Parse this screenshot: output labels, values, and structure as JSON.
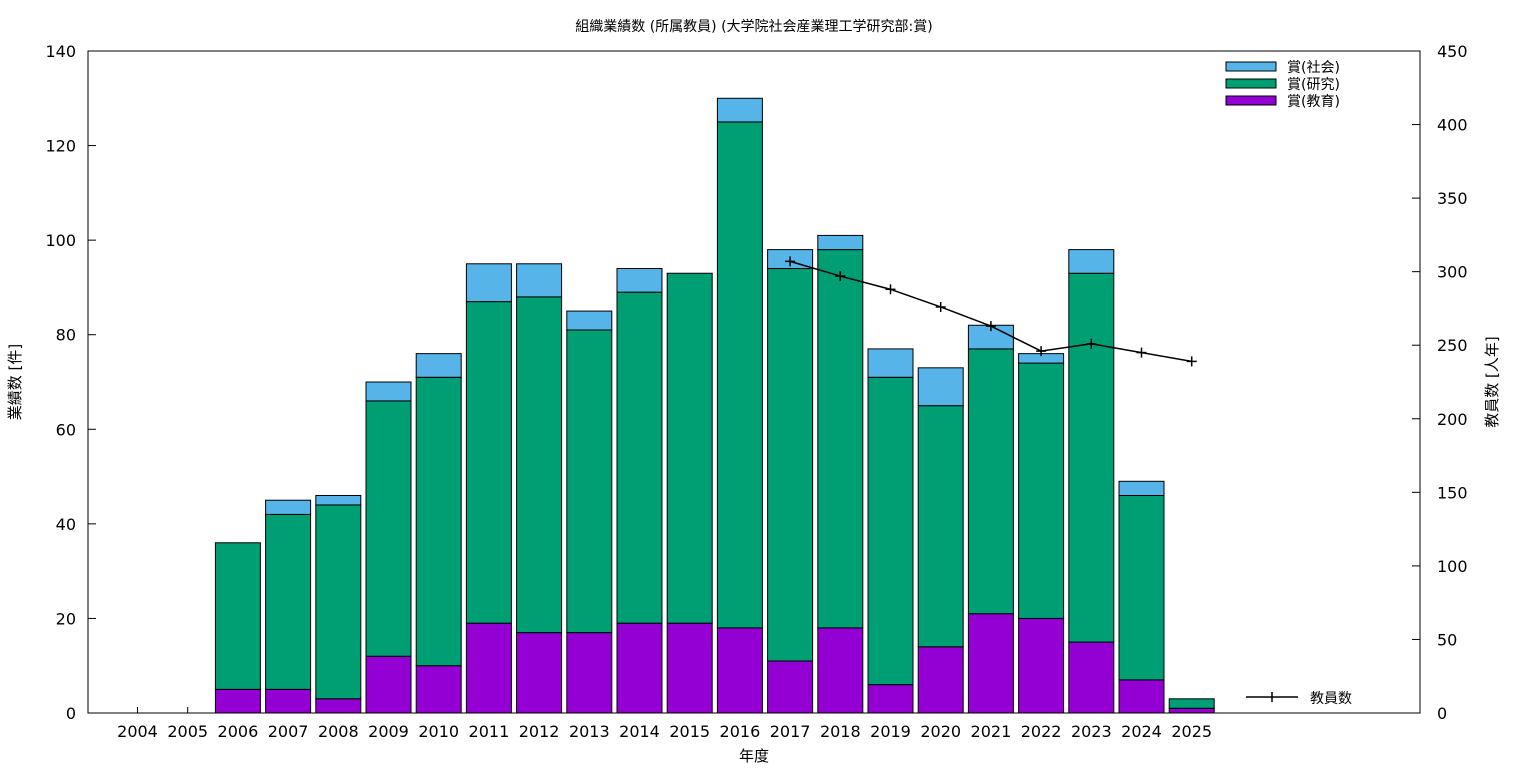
{
  "chart_data": {
    "type": "bar",
    "stacked": true,
    "title": "組織業績数 (所属教員) (大学院社会産業理工学研究部:賞)",
    "xlabel": "年度",
    "ylabel": "業績数 [件]",
    "y2label": "教員数 [人年]",
    "ylim": [
      0,
      140
    ],
    "y2lim": [
      0,
      450
    ],
    "yticks": [
      0,
      20,
      40,
      60,
      80,
      100,
      120,
      140
    ],
    "y2ticks": [
      0,
      50,
      100,
      150,
      200,
      250,
      300,
      350,
      400,
      450
    ],
    "grid": false,
    "legend_position": "top-right",
    "categories": [
      "2004",
      "2005",
      "2006",
      "2007",
      "2008",
      "2009",
      "2010",
      "2011",
      "2012",
      "2013",
      "2014",
      "2015",
      "2016",
      "2017",
      "2018",
      "2019",
      "2020",
      "2021",
      "2022",
      "2023",
      "2024",
      "2025"
    ],
    "series": [
      {
        "name": "賞(教育)",
        "color": "#9400d3",
        "values": [
          0,
          0,
          5,
          5,
          3,
          12,
          10,
          19,
          17,
          17,
          19,
          19,
          18,
          11,
          18,
          6,
          14,
          21,
          20,
          15,
          7,
          1
        ]
      },
      {
        "name": "賞(研究)",
        "color": "#009e73",
        "values": [
          0,
          0,
          31,
          37,
          41,
          54,
          61,
          68,
          71,
          64,
          70,
          74,
          107,
          83,
          80,
          65,
          51,
          56,
          54,
          78,
          39,
          2
        ]
      },
      {
        "name": "賞(社会)",
        "color": "#56b4e9",
        "values": [
          0,
          0,
          0,
          3,
          2,
          4,
          5,
          8,
          7,
          4,
          5,
          0,
          5,
          4,
          3,
          6,
          8,
          5,
          2,
          5,
          3,
          0
        ]
      }
    ],
    "line_series": {
      "name": "教員数",
      "axis": "y2",
      "color": "#000000",
      "x": [
        "2017",
        "2018",
        "2019",
        "2020",
        "2021",
        "2022",
        "2023",
        "2024",
        "2025"
      ],
      "values": [
        307,
        297,
        288,
        276,
        263,
        246,
        251,
        245,
        239
      ]
    }
  }
}
